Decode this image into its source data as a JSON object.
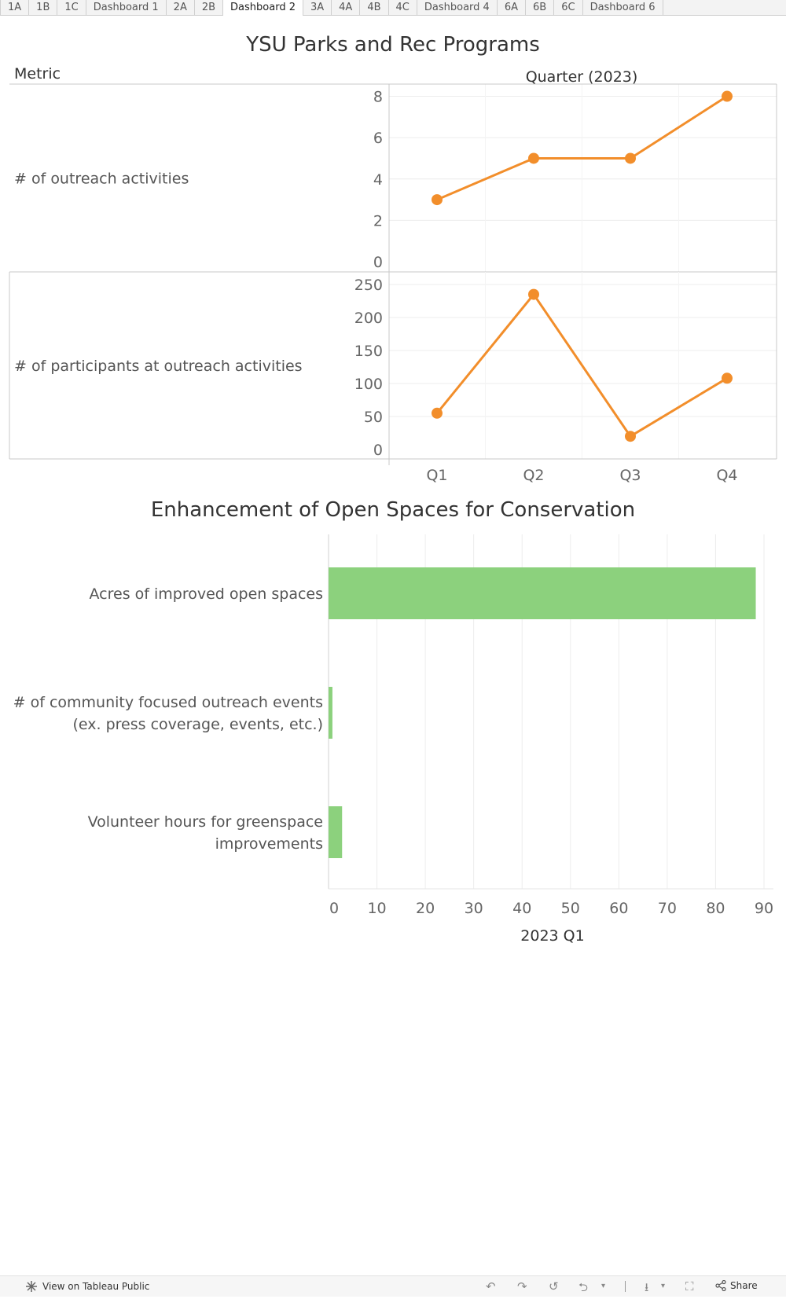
{
  "tabs": [
    {
      "label": "1A",
      "active": false
    },
    {
      "label": "1B",
      "active": false
    },
    {
      "label": "1C",
      "active": false
    },
    {
      "label": "Dashboard 1",
      "active": false
    },
    {
      "label": "2A",
      "active": false
    },
    {
      "label": "2B",
      "active": false
    },
    {
      "label": "Dashboard 2",
      "active": true
    },
    {
      "label": "3A",
      "active": false
    },
    {
      "label": "4A",
      "active": false
    },
    {
      "label": "4B",
      "active": false
    },
    {
      "label": "4C",
      "active": false
    },
    {
      "label": "Dashboard 4",
      "active": false
    },
    {
      "label": "6A",
      "active": false
    },
    {
      "label": "6B",
      "active": false
    },
    {
      "label": "6C",
      "active": false
    },
    {
      "label": "Dashboard 6",
      "active": false
    }
  ],
  "dashboard": {
    "title": "YSU Parks and Rec Programs",
    "section2_title": "Enhancement of Open Spaces for Conservation"
  },
  "colors": {
    "line": "#F28E2B",
    "bar": "#8CD17D",
    "grid": "#ececec",
    "border": "#c8c8c8"
  },
  "chart_data": [
    {
      "type": "line",
      "row_header": "Metric",
      "column_header": "Quarter (2023)",
      "categories": [
        "Q1",
        "Q2",
        "Q3",
        "Q4"
      ],
      "panels": [
        {
          "name": "# of outreach activities",
          "values": [
            3,
            5,
            5,
            8
          ],
          "ylim": [
            0,
            8.4
          ],
          "yticks": [
            0,
            2,
            4,
            6,
            8
          ]
        },
        {
          "name": "# of participants at outreach activities",
          "values": [
            55,
            235,
            20,
            108
          ],
          "ylim": [
            0,
            250
          ],
          "yticks": [
            0,
            50,
            100,
            150,
            200,
            250
          ]
        }
      ],
      "grid": true
    },
    {
      "type": "bar",
      "orientation": "horizontal",
      "title": "Enhancement of Open Spaces for Conservation",
      "categories": [
        [
          "Acres of improved open spaces"
        ],
        [
          "# of community focused outreach events",
          "(ex. press coverage, events, etc.)"
        ],
        [
          "Volunteer hours for greenspace",
          "improvements"
        ]
      ],
      "values": [
        88.3,
        0.8,
        2.8
      ],
      "xlabel": "2023 Q1",
      "xlim": [
        0,
        90
      ],
      "xticks": [
        0,
        10,
        20,
        30,
        40,
        50,
        60,
        70,
        80,
        90
      ],
      "grid": true
    }
  ],
  "toolbar": {
    "view_label": "View on Tableau Public",
    "share_label": "Share",
    "icons": [
      "undo-icon",
      "redo-icon",
      "revert-icon",
      "refresh-icon",
      "download-icon",
      "fullscreen-icon",
      "share-icon"
    ]
  }
}
